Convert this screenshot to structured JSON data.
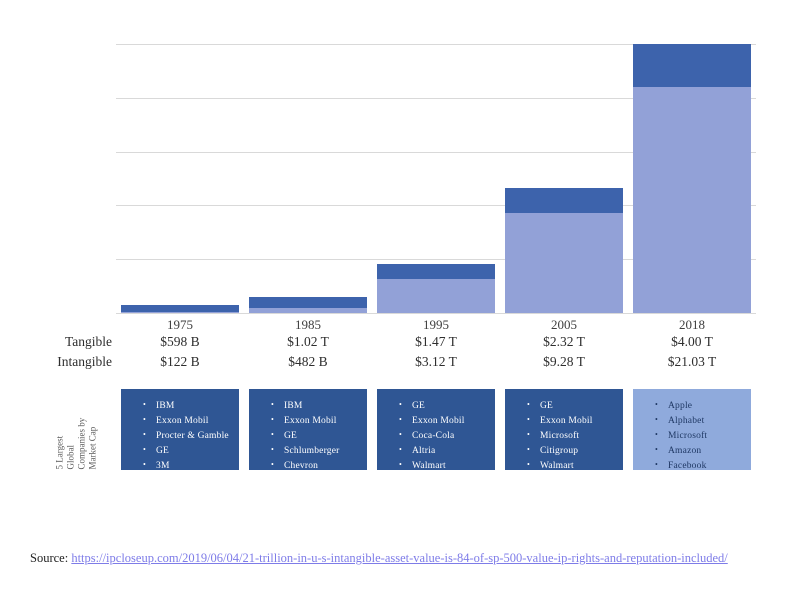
{
  "chart_data": {
    "type": "bar",
    "stacked": true,
    "title": "",
    "xlabel": "",
    "ylabel": "",
    "categories": [
      "1975",
      "1985",
      "1995",
      "2005",
      "2018"
    ],
    "series": [
      {
        "name": "Intangible",
        "unit": "trillion USD",
        "values": [
          0.122,
          0.482,
          3.12,
          9.28,
          21.03
        ]
      },
      {
        "name": "Tangible",
        "unit": "trillion USD",
        "values": [
          0.598,
          1.02,
          1.47,
          2.32,
          4.0
        ]
      }
    ],
    "ylim": [
      0,
      25
    ],
    "gridline_step": 5,
    "grid": true,
    "legend_position": "none",
    "value_labels": {
      "tangible": [
        "$598 B",
        "$1.02 T",
        "$1.47 T",
        "$2.32 T",
        "$4.00 T"
      ],
      "intangible": [
        "$122 B",
        "$482 B",
        "$3.12 T",
        "$9.28 T",
        "$21.03 T"
      ]
    }
  },
  "table": {
    "row_labels": {
      "tangible": "Tangible",
      "intangible": "Intangible"
    }
  },
  "companies": {
    "bullet": "•",
    "side_label_lines": [
      "5 Largest",
      "Global",
      "Companies by",
      "Market Cap"
    ],
    "boxes": [
      {
        "year": "1975",
        "style": "dark",
        "items": [
          "IBM",
          "Exxon Mobil",
          "Procter & Gamble",
          "GE",
          "3M"
        ]
      },
      {
        "year": "1985",
        "style": "dark",
        "items": [
          "IBM",
          "Exxon Mobil",
          "GE",
          "Schlumberger",
          "Chevron"
        ]
      },
      {
        "year": "1995",
        "style": "dark",
        "items": [
          "GE",
          "Exxon Mobil",
          "Coca-Cola",
          "Altria",
          "Walmart"
        ]
      },
      {
        "year": "2005",
        "style": "dark",
        "items": [
          "GE",
          "Exxon Mobil",
          "Microsoft",
          "Citigroup",
          "Walmart"
        ]
      },
      {
        "year": "2018",
        "style": "light",
        "items": [
          "Apple",
          "Alphabet",
          "Microsoft",
          "Amazon",
          "Facebook"
        ]
      }
    ]
  },
  "source": {
    "label": "Source:",
    "url_text": "https://ipcloseup.com/2019/06/04/21-trillion-in-u-s-intangible-asset-value-is-84-of-sp-500-value-ip-rights-and-reputation-included/"
  },
  "colors": {
    "bar_tangible": "#3D63AC",
    "bar_intangible": "#92A1D7",
    "box_dark_bg": "#2F5694",
    "box_dark_text": "#FFFFFF",
    "box_light_bg": "#8FAADC",
    "box_light_text": "#1F3864",
    "gridline": "#D9D9D9",
    "link": "#7E7CE8",
    "side_label_text": "#595959"
  }
}
